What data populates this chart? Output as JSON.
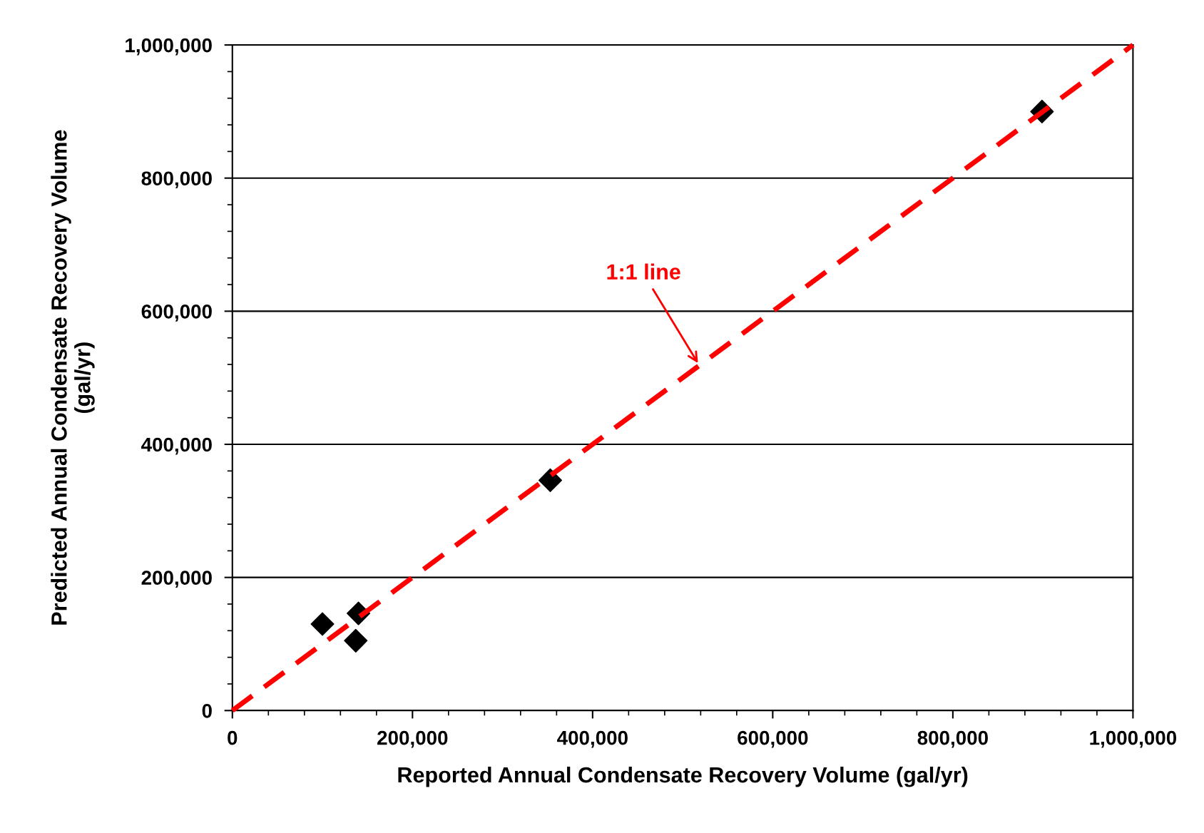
{
  "chart_data": {
    "type": "scatter",
    "xlabel": "Reported Annual Condensate Recovery Volume (gal/yr)",
    "ylabel": "Predicted Annual Condensate Recovery Volume\n(gal/yr)",
    "xlim": [
      0,
      1000000
    ],
    "ylim": [
      0,
      1000000
    ],
    "xticks": [
      {
        "value": 0,
        "label": "0"
      },
      {
        "value": 200000,
        "label": "200,000"
      },
      {
        "value": 400000,
        "label": "400,000"
      },
      {
        "value": 600000,
        "label": "600,000"
      },
      {
        "value": 800000,
        "label": "800,000"
      },
      {
        "value": 1000000,
        "label": "1,000,000"
      }
    ],
    "yticks": [
      {
        "value": 0,
        "label": "0"
      },
      {
        "value": 200000,
        "label": "200,000"
      },
      {
        "value": 400000,
        "label": "400,000"
      },
      {
        "value": 600000,
        "label": "600,000"
      },
      {
        "value": 800000,
        "label": "800,000"
      },
      {
        "value": 1000000,
        "label": "1,000,000"
      }
    ],
    "grid": "y",
    "legend": false,
    "series": [
      {
        "type": "scatter",
        "color": "#000000",
        "marker": "diamond",
        "x": [
          100000,
          140000,
          137000,
          353000,
          899000
        ],
        "values": [
          130000,
          146000,
          105000,
          346000,
          900000
        ]
      },
      {
        "type": "line",
        "color": "#ff0000",
        "line_style": "dashed",
        "marker": "none",
        "x": [
          0,
          1000000
        ],
        "values": [
          0,
          1000000
        ]
      }
    ],
    "annotations": [
      {
        "text": "1:1 line",
        "x": 517000,
        "y": 522000
      }
    ]
  }
}
